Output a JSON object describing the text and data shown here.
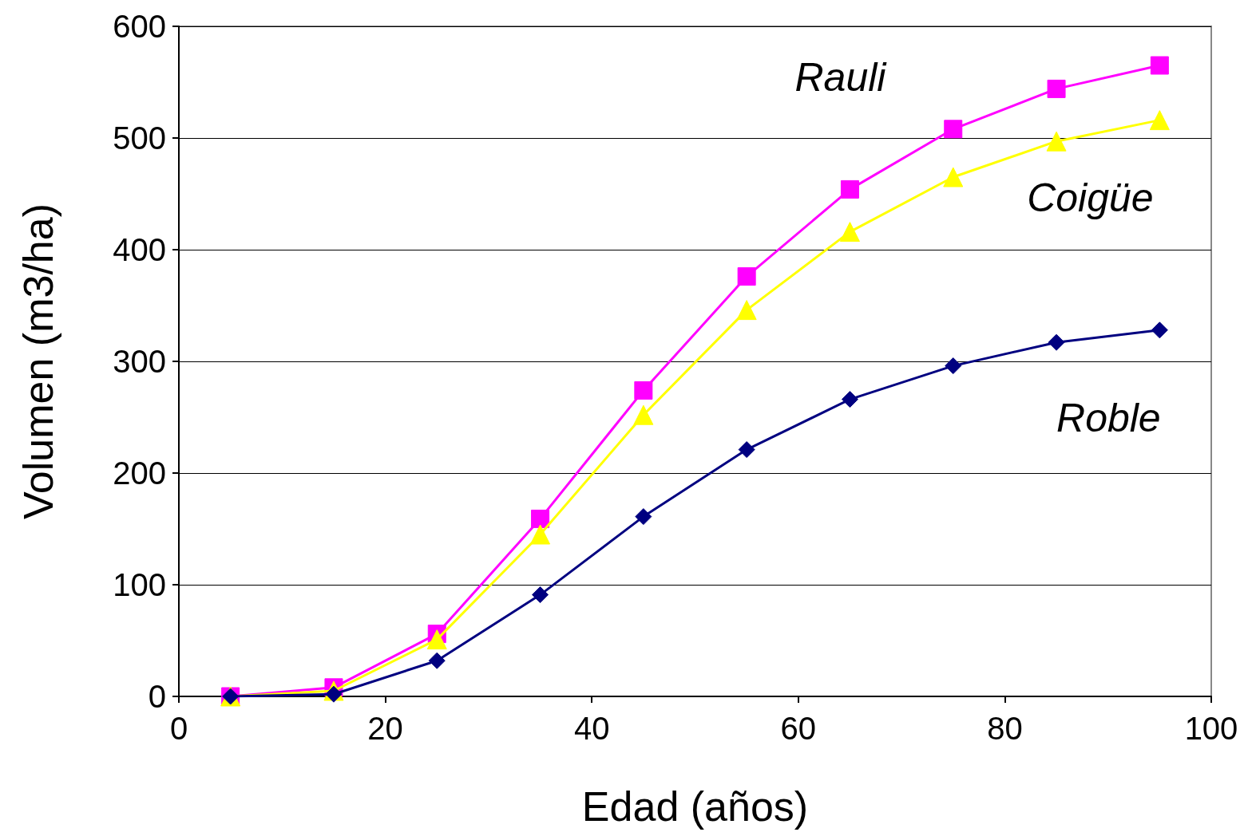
{
  "chart_data": {
    "type": "line",
    "xlabel": "Edad (años)",
    "ylabel": "Volumen (m3/ha)",
    "x": [
      5,
      15,
      25,
      35,
      45,
      55,
      65,
      75,
      85,
      95
    ],
    "series": [
      {
        "name": "Rauli",
        "color": "#ff00ff",
        "marker": "square",
        "values": [
          0,
          8,
          56,
          159,
          274,
          376,
          454,
          508,
          544,
          565
        ]
      },
      {
        "name": "Coigüe",
        "color": "#ffff00",
        "marker": "triangle",
        "values": [
          0,
          5,
          51,
          145,
          252,
          346,
          416,
          465,
          497,
          516
        ]
      },
      {
        "name": "Roble",
        "color": "#000080",
        "marker": "diamond",
        "values": [
          0,
          2,
          32,
          91,
          161,
          221,
          266,
          296,
          317,
          328
        ]
      }
    ],
    "xlim": [
      0,
      100
    ],
    "xticks": [
      0,
      20,
      40,
      60,
      80,
      100
    ],
    "ylim": [
      0,
      600
    ],
    "yticks": [
      0,
      100,
      200,
      300,
      400,
      500,
      600
    ],
    "grid": "y",
    "legend": false,
    "line_style": "solid"
  }
}
